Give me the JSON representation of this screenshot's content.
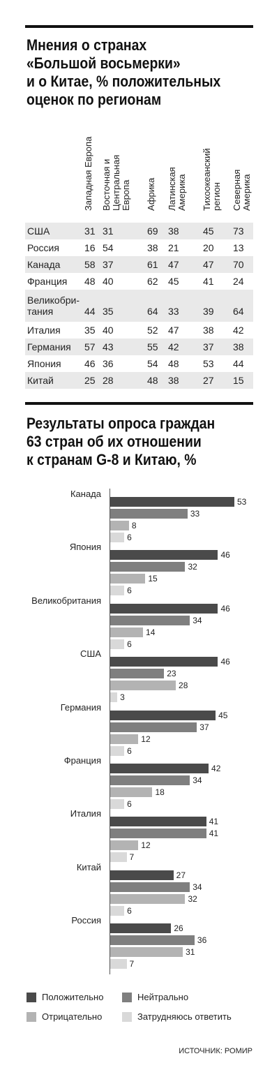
{
  "table": {
    "title_lines": [
      "Мнения о странах",
      "«Большой восьмерки»",
      "и о Китае, % положительных",
      "оценок по регионам"
    ],
    "columns": [
      {
        "lines": [
          "Западная Европа"
        ]
      },
      {
        "lines": [
          "Восточная и",
          "Центральная",
          "Европа"
        ]
      },
      {
        "lines": [
          "Африка"
        ]
      },
      {
        "lines": [
          "Латинская",
          "Америка"
        ]
      },
      {
        "lines": [
          "Тихоокеанский",
          "регион"
        ]
      },
      {
        "lines": [
          "Северная",
          "Америка"
        ]
      }
    ],
    "rows": [
      {
        "country_lines": [
          "США"
        ],
        "values": [
          31,
          31,
          69,
          38,
          45,
          73
        ]
      },
      {
        "country_lines": [
          "Россия"
        ],
        "values": [
          16,
          54,
          38,
          21,
          20,
          13
        ]
      },
      {
        "country_lines": [
          "Канада"
        ],
        "values": [
          58,
          37,
          61,
          47,
          47,
          70
        ]
      },
      {
        "country_lines": [
          "Франция"
        ],
        "values": [
          48,
          40,
          62,
          45,
          41,
          24
        ]
      },
      {
        "country_lines": [
          "Великобри-",
          "тания"
        ],
        "values": [
          44,
          35,
          64,
          33,
          39,
          64
        ]
      },
      {
        "country_lines": [
          "Италия"
        ],
        "values": [
          35,
          40,
          52,
          47,
          38,
          42
        ]
      },
      {
        "country_lines": [
          "Германия"
        ],
        "values": [
          57,
          43,
          55,
          42,
          37,
          38
        ]
      },
      {
        "country_lines": [
          "Япония"
        ],
        "values": [
          46,
          36,
          54,
          48,
          53,
          44
        ]
      },
      {
        "country_lines": [
          "Китай"
        ],
        "values": [
          25,
          28,
          48,
          38,
          27,
          15
        ]
      }
    ]
  },
  "chart_data": {
    "type": "bar",
    "orientation": "horizontal",
    "title_lines": [
      "Результаты опроса граждан",
      "63 стран об их отношении",
      "к странам G-8 и Китаю, %"
    ],
    "categories": [
      "Канада",
      "Япония",
      "Великобритания",
      "США",
      "Германия",
      "Франция",
      "Италия",
      "Китай",
      "Россия"
    ],
    "series": [
      {
        "name": "Положительно",
        "color": "#4a4a4a",
        "values": [
          53,
          46,
          46,
          46,
          45,
          42,
          41,
          27,
          26
        ]
      },
      {
        "name": "Нейтрально",
        "color": "#7f7f7f",
        "values": [
          33,
          32,
          34,
          23,
          37,
          34,
          41,
          34,
          36
        ]
      },
      {
        "name": "Отрицательно",
        "color": "#b3b3b3",
        "values": [
          8,
          15,
          14,
          28,
          12,
          18,
          12,
          32,
          31
        ]
      },
      {
        "name": "Затрудняюсь ответить",
        "color": "#d9d9d9",
        "values": [
          6,
          6,
          6,
          3,
          6,
          6,
          7,
          6,
          7
        ]
      }
    ],
    "xlim": [
      0,
      56
    ],
    "legend": "bottom",
    "source": "ИСТОЧНИК: РОМИР"
  }
}
